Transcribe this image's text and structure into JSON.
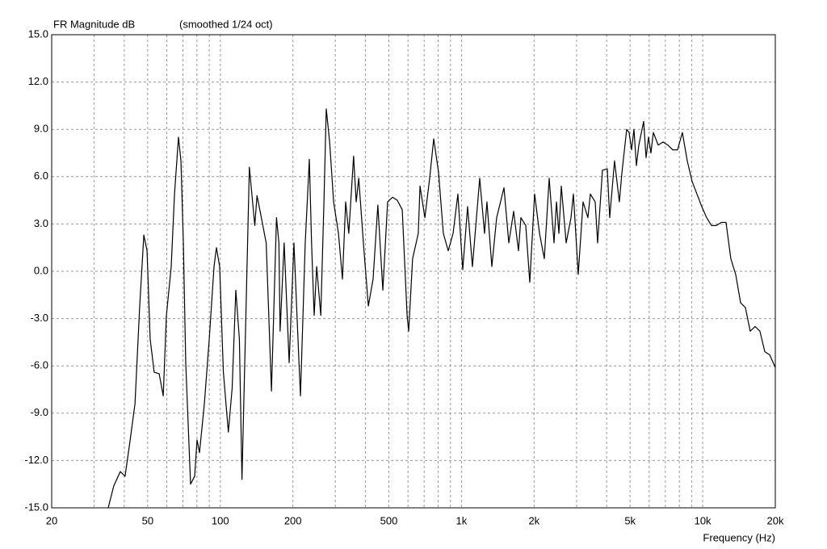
{
  "chart_data": {
    "type": "line",
    "title": "FR Magnitude dB",
    "subtitle": "(smoothed 1/24 oct)",
    "x_label": "Frequency (Hz)",
    "xscale": "log",
    "grid": true,
    "color": "#000000",
    "xlim": [
      20,
      20000
    ],
    "ylim": [
      -15,
      15
    ],
    "xticks": [
      20,
      50,
      100,
      200,
      500,
      {
        "value": 1000,
        "label": "1k"
      },
      {
        "value": 2000,
        "label": "2k"
      },
      {
        "value": 5000,
        "label": "5k"
      },
      {
        "value": 10000,
        "label": "10k"
      },
      {
        "value": 20000,
        "label": "20k"
      }
    ],
    "xminorticks": [
      30,
      40,
      60,
      70,
      80,
      90,
      300,
      400,
      600,
      700,
      800,
      900,
      3000,
      4000,
      6000,
      7000,
      8000,
      9000
    ],
    "yticks": [
      {
        "value": -15,
        "label": "-15.0"
      },
      {
        "value": -12,
        "label": "-12.0"
      },
      {
        "value": -9,
        "label": "-9.0"
      },
      {
        "value": -6,
        "label": "-6.0"
      },
      {
        "value": -3,
        "label": "-3.0"
      },
      {
        "value": 0,
        "label": "0.0"
      },
      {
        "value": 3,
        "label": "3.0"
      },
      {
        "value": 6,
        "label": "6.0"
      },
      {
        "value": 9,
        "label": "9.0"
      },
      {
        "value": 12,
        "label": "12.0"
      },
      {
        "value": 15,
        "label": "15.0"
      }
    ],
    "x": [
      34.3,
      36.2,
      38.5,
      40.3,
      42.3,
      44.3,
      46.3,
      48.2,
      49.7,
      51.2,
      53.2,
      55.8,
      58.0,
      59.8,
      62.6,
      64.6,
      67.1,
      68.7,
      70.3,
      71.9,
      75.3,
      78.3,
      80.1,
      82.0,
      85.9,
      90.0,
      94.2,
      96.4,
      99.4,
      103,
      108,
      112,
      116,
      120,
      123,
      127,
      132,
      139,
      142,
      148,
      155,
      163,
      171,
      175,
      177,
      184,
      193,
      202,
      212,
      215,
      225,
      234,
      239,
      245,
      251,
      261,
      269,
      275,
      284,
      295,
      309,
      321,
      331,
      341,
      357,
      366,
      375,
      392,
      411,
      430,
      450,
      472,
      494,
      518,
      542,
      568,
      595,
      604,
      627,
      662,
      673,
      705,
      738,
      767,
      803,
      841,
      881,
      923,
      966,
      1012,
      1060,
      1110,
      1190,
      1246,
      1275,
      1336,
      1399,
      1500,
      1571,
      1645,
      1723,
      1763,
      1847,
      1919,
      2010,
      2106,
      2205,
      2310,
      2419,
      2476,
      2534,
      2593,
      2716,
      2844,
      2910,
      3048,
      3192,
      3342,
      3421,
      3583,
      3667,
      3840,
      4021,
      4116,
      4310,
      4513,
      4621,
      4840,
      4953,
      5070,
      5188,
      5310,
      5435,
      5691,
      5825,
      5961,
      6101,
      6243,
      6539,
      6848,
      7171,
      7511,
      7866,
      8238,
      8629,
      9037,
      9465,
      9913,
      10380,
      10870,
      11390,
      11930,
      12490,
      13080,
      13700,
      14360,
      15030,
      15740,
      16490,
      17270,
      18090,
      18950,
      20000
    ],
    "values": [
      -15.0,
      -13.6,
      -12.7,
      -13.0,
      -10.7,
      -8.4,
      -2.3,
      2.3,
      1.3,
      -4.3,
      -6.4,
      -6.5,
      -7.9,
      -2.8,
      0.3,
      4.9,
      8.5,
      7.0,
      1.8,
      -5.8,
      -13.5,
      -13.0,
      -10.7,
      -11.5,
      -8.4,
      -4.3,
      0.3,
      1.5,
      0.3,
      -6.4,
      -10.2,
      -7.4,
      -1.2,
      -4.3,
      -13.2,
      -4.3,
      6.6,
      2.9,
      4.8,
      3.4,
      1.8,
      -7.6,
      3.4,
      1.8,
      -3.8,
      1.8,
      -5.8,
      1.8,
      -5.8,
      -7.9,
      1.8,
      7.1,
      1.8,
      -2.8,
      0.3,
      -2.8,
      4.4,
      10.3,
      8.2,
      4.4,
      2.4,
      -0.5,
      4.4,
      2.4,
      7.3,
      4.4,
      5.9,
      1.8,
      -2.2,
      -0.5,
      4.2,
      -1.2,
      4.4,
      4.7,
      4.5,
      3.9,
      -2.8,
      -3.8,
      0.8,
      2.4,
      5.4,
      3.4,
      5.9,
      8.4,
      6.3,
      2.4,
      1.3,
      2.4,
      4.9,
      0.1,
      4.1,
      0.3,
      5.9,
      2.4,
      4.4,
      0.3,
      3.4,
      5.3,
      1.8,
      3.8,
      1.3,
      3.4,
      2.9,
      -0.7,
      4.9,
      2.4,
      0.8,
      5.9,
      1.8,
      4.4,
      2.4,
      5.4,
      1.8,
      3.4,
      4.9,
      -0.2,
      4.4,
      3.4,
      4.9,
      4.4,
      1.8,
      6.4,
      6.5,
      3.4,
      7.0,
      4.4,
      6.2,
      9.0,
      8.8,
      7.7,
      9.0,
      6.7,
      8.0,
      9.5,
      7.2,
      8.5,
      7.5,
      8.8,
      8.0,
      8.2,
      8.0,
      7.7,
      7.7,
      8.8,
      7.0,
      5.7,
      4.9,
      4.1,
      3.4,
      2.9,
      2.9,
      3.1,
      3.1,
      0.8,
      -0.2,
      -2.0,
      -2.3,
      -3.8,
      -3.5,
      -3.8,
      -5.1,
      -5.3,
      -6.1
    ]
  }
}
